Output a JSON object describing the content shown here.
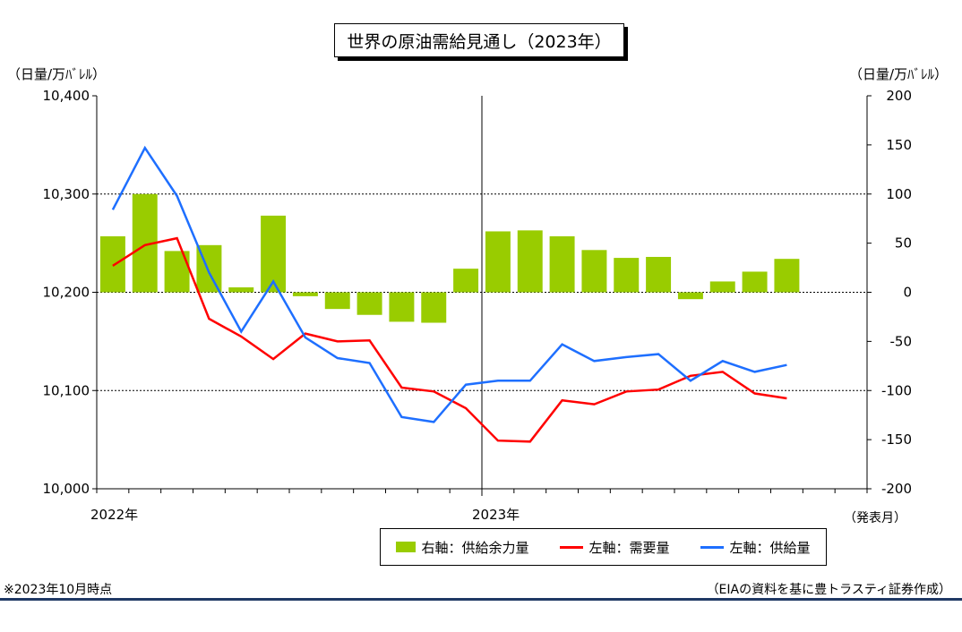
{
  "chart_data": {
    "type": "bar+line",
    "title": "世界の原油需給見通し（2023年）",
    "left_axis": {
      "unit": "（日量/万ﾊﾞﾚﾙ）",
      "ylim": [
        10000,
        10400
      ],
      "ticks": [
        "10,000",
        "10,100",
        "10,200",
        "10,300",
        "10,400"
      ],
      "tick_values": [
        10000,
        10100,
        10200,
        10300,
        10400
      ]
    },
    "right_axis": {
      "unit": "（日量/万ﾊﾞﾚﾙ）",
      "ylim": [
        -200,
        200
      ],
      "ticks": [
        "200",
        "150",
        "100",
        "50",
        "0",
        "-50",
        "-100",
        "-150",
        "-200"
      ],
      "tick_values": [
        200,
        150,
        100,
        50,
        0,
        -50,
        -100,
        -150,
        -200
      ]
    },
    "x_labels": [
      "2022年",
      "2023年"
    ],
    "x_unit": "（発表月）",
    "series": [
      {
        "name": "右軸：供給余力量",
        "kind": "bar",
        "axis": "right",
        "color": "#99cc00",
        "values": [
          57,
          100,
          42,
          48,
          5,
          78,
          -4,
          -17,
          -23,
          -30,
          -31,
          24,
          62,
          63,
          57,
          43,
          35,
          36,
          -7,
          11,
          21,
          34
        ]
      },
      {
        "name": "左軸：需要量",
        "kind": "line",
        "axis": "left",
        "color": "#ff0000",
        "values": [
          10227,
          10248,
          10255,
          10173,
          10155,
          10132,
          10158,
          10150,
          10151,
          10103,
          10099,
          10082,
          10049,
          10048,
          10090,
          10086,
          10099,
          10101,
          10115,
          10119,
          10097,
          10092
        ]
      },
      {
        "name": "左軸：供給量",
        "kind": "line",
        "axis": "left",
        "color": "#1e6fff",
        "values": [
          10284,
          10347,
          10298,
          10220,
          10160,
          10211,
          10154,
          10133,
          10128,
          10073,
          10068,
          10106,
          10110,
          10110,
          10147,
          10130,
          10134,
          10137,
          10110,
          10130,
          10119,
          10126
        ]
      }
    ],
    "grid": "horizontal dotted at 10,100 / 10,200 / 10,300",
    "legend_position": "bottom-center"
  },
  "notes": {
    "left": "※2023年10月時点",
    "right": "（EIAの資料を基に豊トラスティ証券作成）"
  }
}
